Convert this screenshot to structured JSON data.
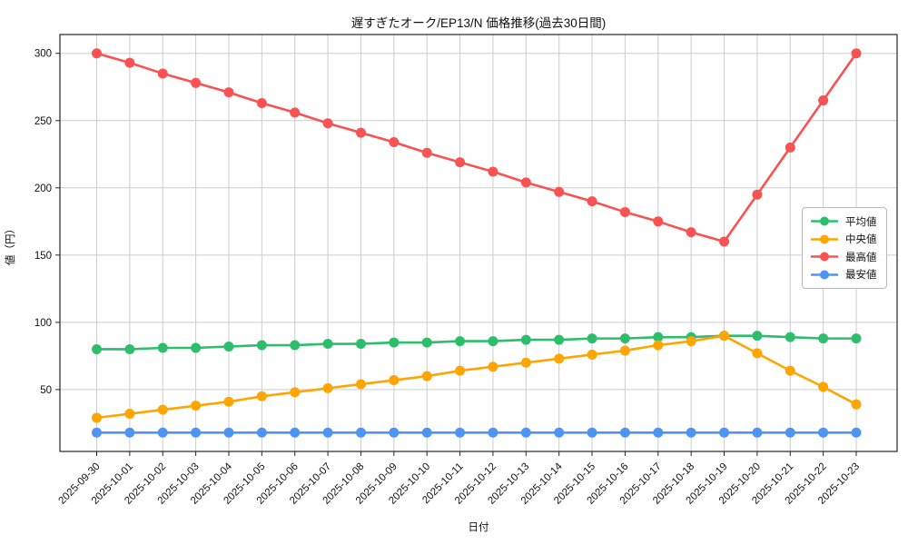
{
  "figure": {
    "title": "遅すぎたオーク/EP13/N 価格推移(過去30日間)",
    "xlabel": "日付",
    "ylabel": "値（円）"
  },
  "chart_data": {
    "type": "line",
    "title": "遅すぎたオーク/EP13/N 価格推移(過去30日間)",
    "xlabel": "日付",
    "ylabel": "値（円）",
    "grid": true,
    "grid_color": "#cccccc",
    "background": "#ffffff",
    "legend_position": "center-right",
    "ylim": [
      4,
      314
    ],
    "yticks": [
      50,
      100,
      150,
      200,
      250,
      300
    ],
    "x": [
      "2025-09-30",
      "2025-10-01",
      "2025-10-02",
      "2025-10-03",
      "2025-10-04",
      "2025-10-05",
      "2025-10-06",
      "2025-10-07",
      "2025-10-08",
      "2025-10-09",
      "2025-10-10",
      "2025-10-11",
      "2025-10-12",
      "2025-10-13",
      "2025-10-14",
      "2025-10-15",
      "2025-10-16",
      "2025-10-17",
      "2025-10-18",
      "2025-10-19",
      "2025-10-20",
      "2025-10-21",
      "2025-10-22",
      "2025-10-23"
    ],
    "series": [
      {
        "id": "average",
        "name": "平均値",
        "color": "#2dbe6c",
        "values": [
          80,
          80,
          81,
          81,
          82,
          83,
          83,
          84,
          84,
          85,
          85,
          86,
          86,
          87,
          87,
          88,
          88,
          89,
          89,
          90,
          90,
          89,
          88,
          88
        ]
      },
      {
        "id": "median",
        "name": "中央値",
        "color": "#ffa502",
        "values": [
          29,
          32,
          35,
          38,
          41,
          45,
          48,
          51,
          54,
          57,
          60,
          64,
          67,
          70,
          73,
          76,
          79,
          83,
          86,
          90,
          77,
          64,
          52,
          39
        ]
      },
      {
        "id": "max",
        "name": "最高値",
        "color": "#f85252",
        "values": [
          300,
          293,
          285,
          278,
          271,
          263,
          256,
          248,
          241,
          234,
          226,
          219,
          212,
          204,
          197,
          190,
          182,
          175,
          167,
          160,
          195,
          230,
          265,
          300
        ]
      },
      {
        "id": "min",
        "name": "最安値",
        "color": "#4d94f5",
        "values": [
          18,
          18,
          18,
          18,
          18,
          18,
          18,
          18,
          18,
          18,
          18,
          18,
          18,
          18,
          18,
          18,
          18,
          18,
          18,
          18,
          18,
          18,
          18,
          18
        ]
      }
    ]
  }
}
